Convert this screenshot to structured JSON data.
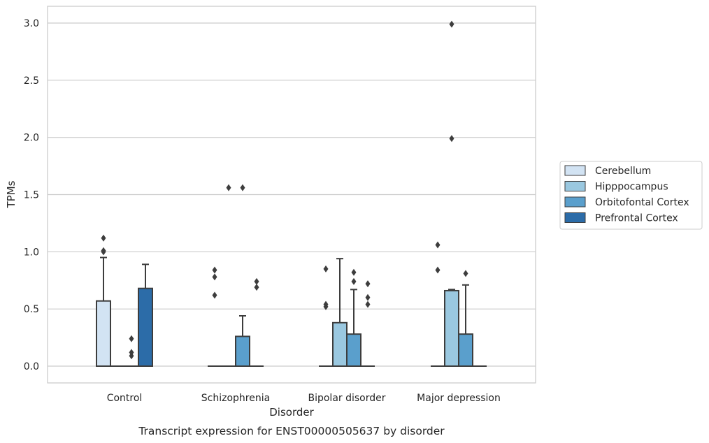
{
  "chart_data": {
    "type": "boxplot",
    "title": "Transcript expression for ENST00000505637 by disorder",
    "xlabel": "Disorder",
    "ylabel": "TPMs",
    "ylim": [
      -0.15,
      3.15
    ],
    "yticks": [
      "0.0",
      "0.5",
      "1.0",
      "1.5",
      "2.0",
      "2.5",
      "3.0"
    ],
    "grid": "horizontal",
    "legend_position": "right",
    "categories": [
      "Control",
      "Schizophrenia",
      "Bipolar disorder",
      "Major depression"
    ],
    "series": [
      {
        "name": "Cerebellum",
        "color": "#d2e3f3",
        "boxes": [
          {
            "q1": 0,
            "median": 0,
            "q3": 0.57,
            "whisker_low": 0,
            "whisker_high": 0.95,
            "outliers": [
              1.0,
              1.01,
              1.12
            ]
          },
          {
            "q1": 0,
            "median": 0,
            "q3": 0,
            "whisker_low": 0,
            "whisker_high": 0,
            "outliers": [
              0.62,
              0.78,
              0.84
            ]
          },
          {
            "q1": 0,
            "median": 0,
            "q3": 0,
            "whisker_low": 0,
            "whisker_high": 0,
            "outliers": [
              0.52,
              0.54,
              0.85
            ]
          },
          {
            "q1": 0,
            "median": 0,
            "q3": 0,
            "whisker_low": 0,
            "whisker_high": 0,
            "outliers": [
              0.84,
              1.06
            ]
          }
        ]
      },
      {
        "name": "Hipppocampus",
        "color": "#9ac8e0",
        "boxes": [
          {
            "q1": 0,
            "median": 0,
            "q3": 0,
            "whisker_low": 0,
            "whisker_high": 0,
            "outliers": []
          },
          {
            "q1": 0,
            "median": 0,
            "q3": 0,
            "whisker_low": 0,
            "whisker_high": 0,
            "outliers": [
              1.56
            ]
          },
          {
            "q1": 0,
            "median": 0,
            "q3": 0.38,
            "whisker_low": 0,
            "whisker_high": 0.94,
            "outliers": []
          },
          {
            "q1": 0,
            "median": 0,
            "q3": 0.66,
            "whisker_low": 0,
            "whisker_high": 0.67,
            "outliers": [
              1.99,
              2.99
            ]
          }
        ]
      },
      {
        "name": "Orbitofontal Cortex",
        "color": "#5a9fcc",
        "boxes": [
          {
            "q1": 0,
            "median": 0,
            "q3": 0,
            "whisker_low": 0,
            "whisker_high": 0,
            "outliers": [
              0.09,
              0.12,
              0.24
            ]
          },
          {
            "q1": 0,
            "median": 0,
            "q3": 0.26,
            "whisker_low": 0,
            "whisker_high": 0.44,
            "outliers": [
              1.56
            ]
          },
          {
            "q1": 0,
            "median": 0,
            "q3": 0.28,
            "whisker_low": 0,
            "whisker_high": 0.67,
            "outliers": [
              0.74,
              0.82
            ]
          },
          {
            "q1": 0,
            "median": 0,
            "q3": 0.28,
            "whisker_low": 0,
            "whisker_high": 0.71,
            "outliers": [
              0.81
            ]
          }
        ]
      },
      {
        "name": "Prefrontal Cortex",
        "color": "#2c6ca8",
        "boxes": [
          {
            "q1": 0,
            "median": 0,
            "q3": 0.68,
            "whisker_low": 0,
            "whisker_high": 0.89,
            "outliers": []
          },
          {
            "q1": 0,
            "median": 0,
            "q3": 0,
            "whisker_low": 0,
            "whisker_high": 0,
            "outliers": [
              0.69,
              0.74
            ]
          },
          {
            "q1": 0,
            "median": 0,
            "q3": 0,
            "whisker_low": 0,
            "whisker_high": 0,
            "outliers": [
              0.54,
              0.6,
              0.72
            ]
          },
          {
            "q1": 0,
            "median": 0,
            "q3": 0,
            "whisker_low": 0,
            "whisker_high": 0,
            "outliers": []
          }
        ]
      }
    ]
  }
}
